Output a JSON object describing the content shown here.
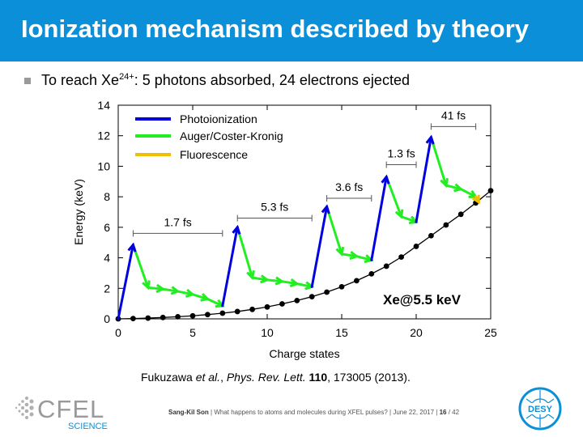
{
  "slide": {
    "title": "Ionization mechanism described by theory",
    "bullet_prefix": "To reach Xe",
    "bullet_sup": "24+",
    "bullet_suffix": ": 5 photons absorbed, 24 electrons ejected",
    "citation": {
      "authors_pre": "Fukuzawa ",
      "authors_etal": "et al.",
      "journal": "Phys. Rev. Lett.",
      "volume": "110",
      "pages_year": ", 173005 (2013)."
    },
    "footer": {
      "author": "Sang-Kil Son",
      "talk": "What happens to atoms and molecules during XFEL pulses?",
      "date": "June 22, 2017",
      "page": "16",
      "total": "/ 42"
    },
    "logos": {
      "left_main": "CFEL",
      "left_sub": "SCIENCE",
      "right": "DESY"
    }
  },
  "colors": {
    "title_bg": "#0a8fd8",
    "photoionization": "#0000e0",
    "auger": "#22ee22",
    "fluorescence": "#f0c000"
  },
  "chart_data": {
    "type": "line",
    "xlabel": "Charge states",
    "ylabel": "Energy (keV)",
    "xlim": [
      0,
      25
    ],
    "ylim": [
      0,
      14
    ],
    "xticks": [
      0,
      5,
      10,
      15,
      20,
      25
    ],
    "yticks": [
      0,
      2,
      4,
      6,
      8,
      10,
      12,
      14
    ],
    "annotation": "Xe@5.5 keV",
    "legend": {
      "placement": "top-left",
      "entries": [
        "Photoionization",
        "Auger/Coster-Kronig",
        "Fluorescence"
      ]
    },
    "threshold_curve": {
      "x": [
        0,
        1,
        2,
        3,
        4,
        5,
        6,
        7,
        8,
        9,
        10,
        11,
        12,
        13,
        14,
        15,
        16,
        17,
        18,
        19,
        20,
        21,
        22,
        23,
        24,
        25
      ],
      "y": [
        0,
        0.02,
        0.05,
        0.09,
        0.14,
        0.2,
        0.28,
        0.37,
        0.48,
        0.62,
        0.78,
        0.98,
        1.2,
        1.45,
        1.75,
        2.1,
        2.5,
        2.95,
        3.45,
        4.05,
        4.75,
        5.45,
        6.15,
        6.85,
        7.6,
        8.4
      ]
    },
    "photoionization": [
      [
        [
          0,
          0
        ],
        [
          1,
          4.85
        ]
      ],
      [
        [
          7,
          0.85
        ],
        [
          8,
          6.0
        ]
      ],
      [
        [
          13,
          2.1
        ],
        [
          14,
          7.35
        ]
      ],
      [
        [
          17,
          3.85
        ],
        [
          18,
          9.3
        ]
      ],
      [
        [
          20,
          6.35
        ],
        [
          21,
          11.9
        ]
      ]
    ],
    "auger": [
      [
        [
          1,
          4.85
        ],
        [
          2,
          2.05
        ],
        [
          3,
          1.95
        ],
        [
          4,
          1.8
        ],
        [
          5,
          1.6
        ],
        [
          6,
          1.3
        ],
        [
          7,
          0.85
        ]
      ],
      [
        [
          8,
          6.0
        ],
        [
          9,
          2.7
        ],
        [
          10,
          2.55
        ],
        [
          11,
          2.45
        ],
        [
          12,
          2.3
        ],
        [
          13,
          2.1
        ]
      ],
      [
        [
          14,
          7.35
        ],
        [
          15,
          4.25
        ],
        [
          16,
          4.1
        ],
        [
          17,
          3.85
        ]
      ],
      [
        [
          18,
          9.3
        ],
        [
          19,
          6.7
        ],
        [
          20,
          6.35
        ]
      ],
      [
        [
          21,
          11.9
        ],
        [
          22,
          8.75
        ],
        [
          23,
          8.5
        ],
        [
          24,
          8.0
        ]
      ]
    ],
    "fluorescence": [
      [
        [
          24,
          8.0
        ],
        [
          24.2,
          7.65
        ]
      ]
    ],
    "intervals": [
      {
        "label": "1.7 fs",
        "x": [
          1,
          7
        ],
        "y": 5.6
      },
      {
        "label": "5.3 fs",
        "x": [
          8,
          13
        ],
        "y": 6.6
      },
      {
        "label": "3.6 fs",
        "x": [
          14,
          17
        ],
        "y": 7.9
      },
      {
        "label": "1.3 fs",
        "x": [
          18,
          20
        ],
        "y": 10.1
      },
      {
        "label": "41 fs",
        "x": [
          21,
          24
        ],
        "y": 12.6
      }
    ]
  }
}
